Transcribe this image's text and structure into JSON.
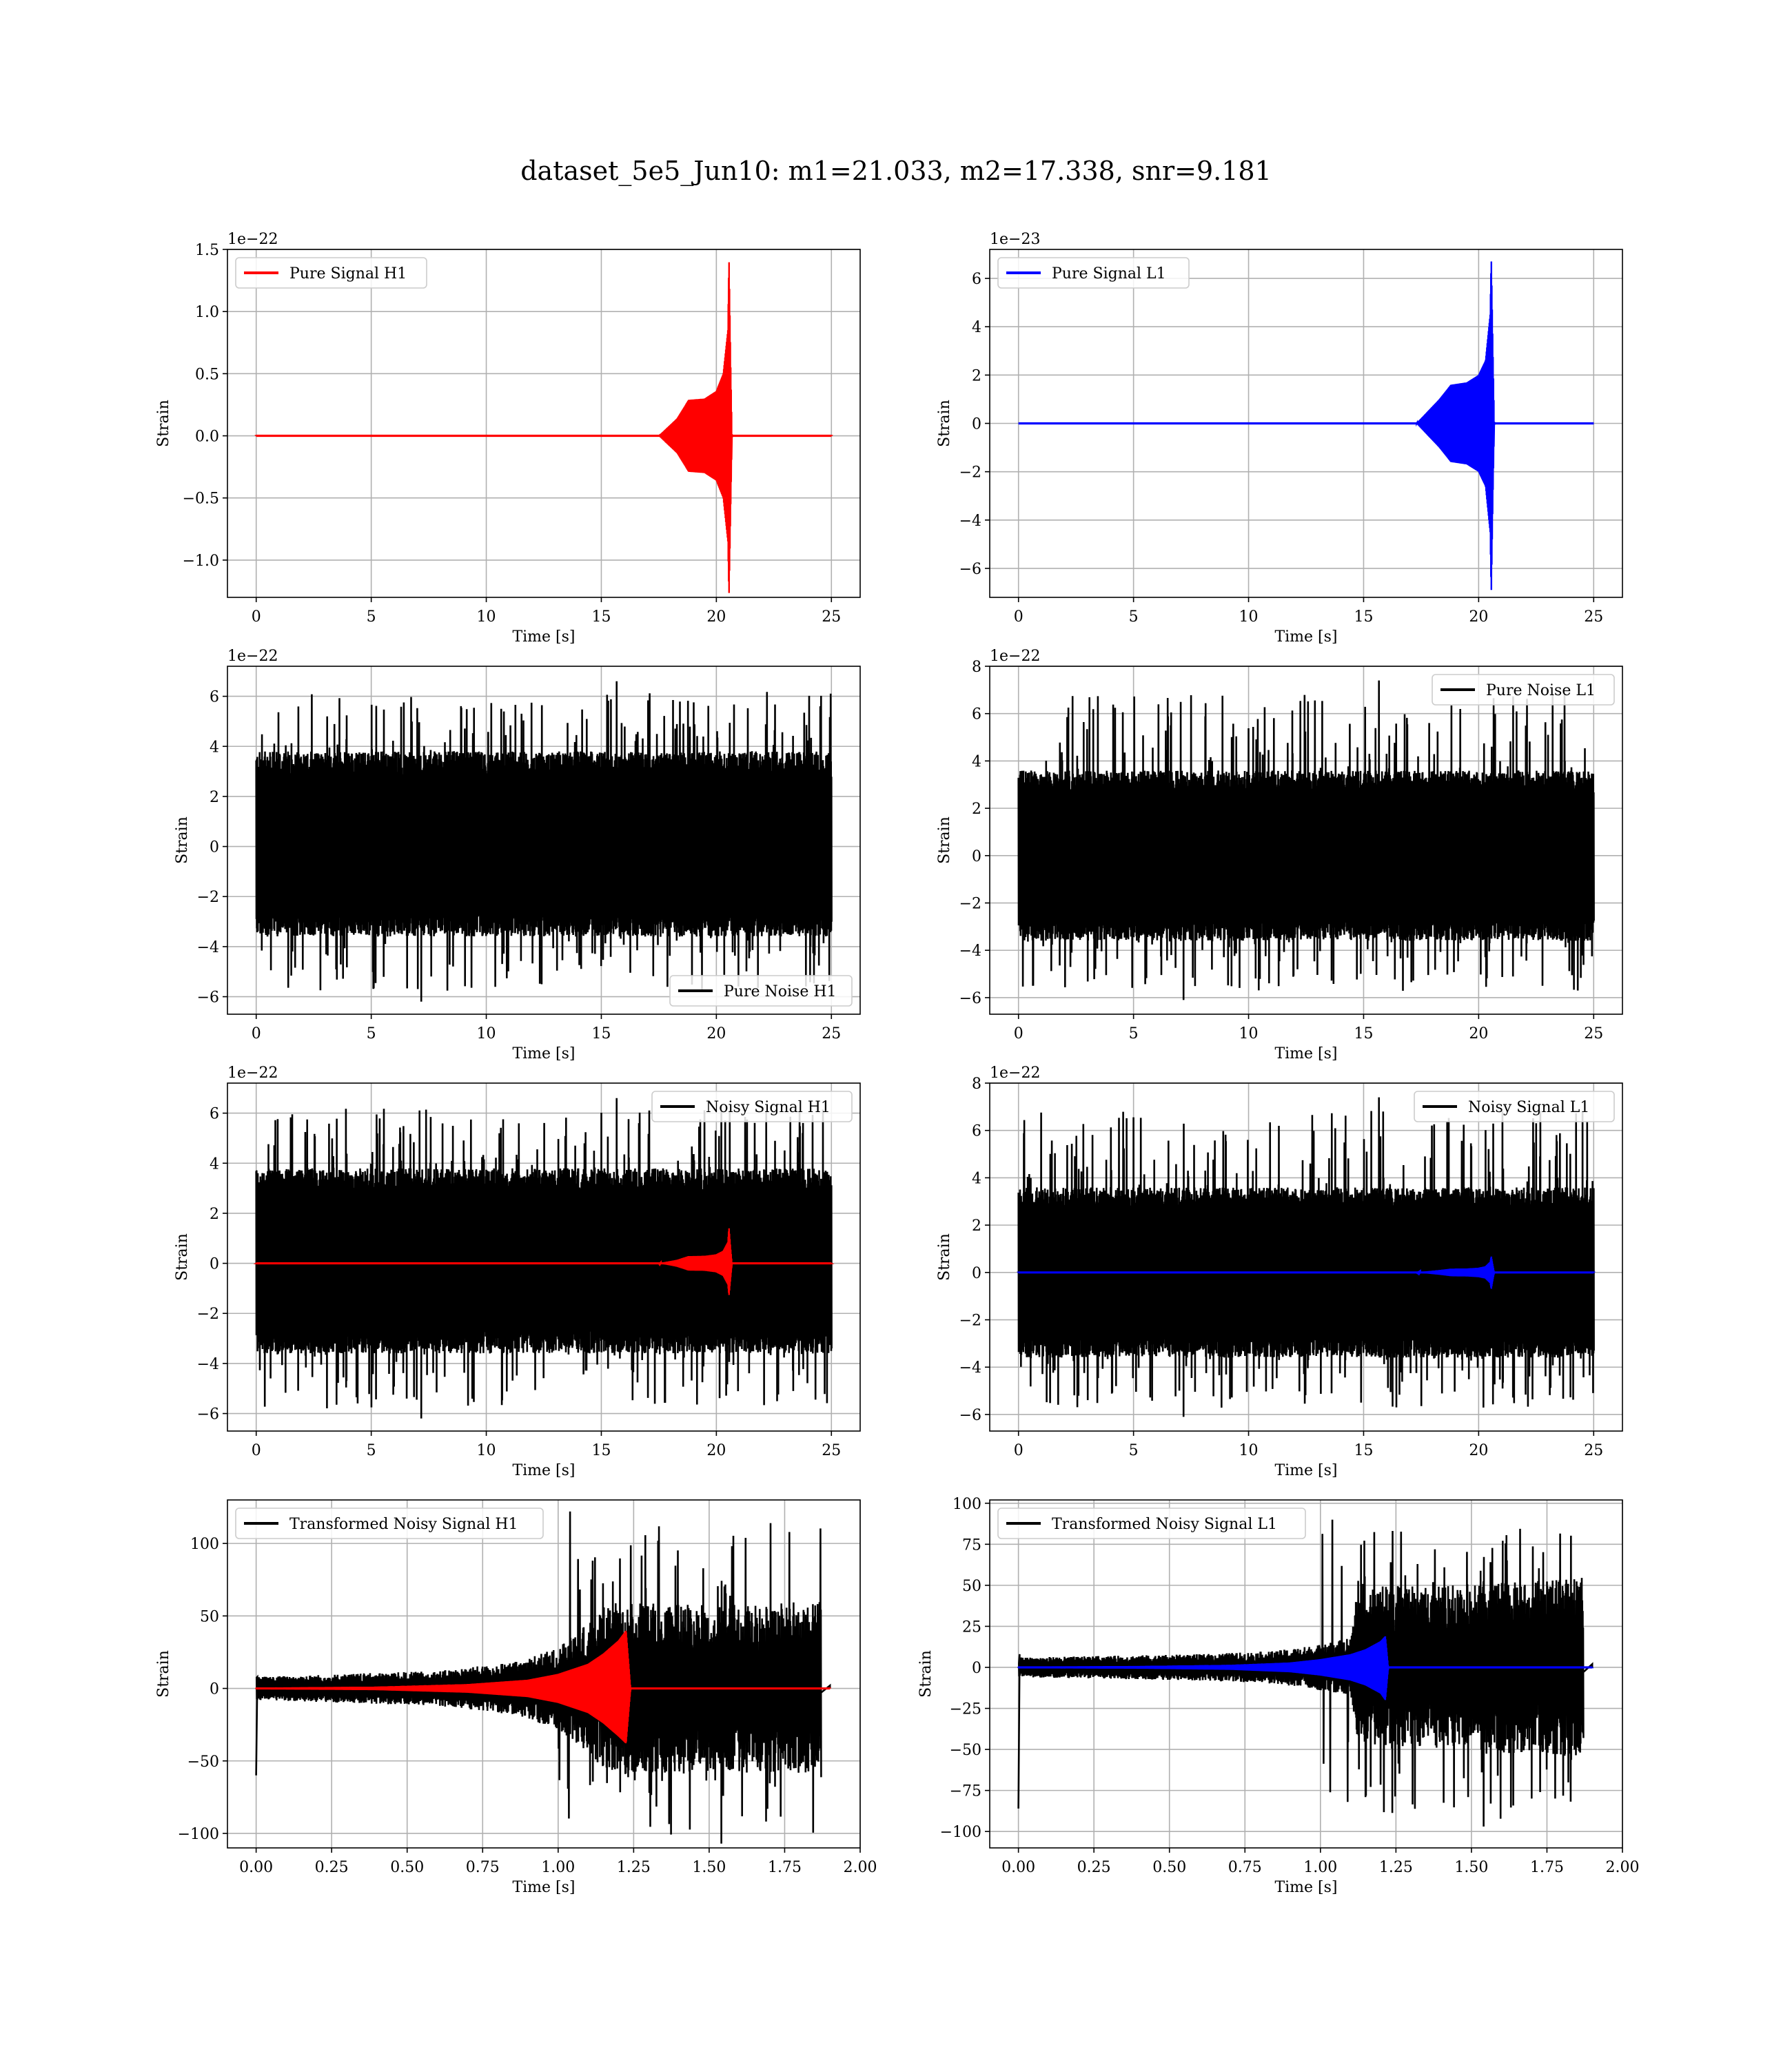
{
  "suptitle": "dataset_5e5_Jun10: m1=21.033, m2=17.338, snr=9.181",
  "colors": {
    "h1_signal": "#ff0000",
    "l1_signal": "#0000ff",
    "noise": "#000000",
    "grid": "#b0b0b0"
  },
  "chart_data": [
    {
      "type": "line",
      "id": "pure-signal-h1",
      "xlabel": "Time [s]",
      "ylabel": "Strain",
      "offset_text": "1e−22",
      "xlim": [
        -1.25,
        26.25
      ],
      "ylim": [
        -1.3,
        1.5
      ],
      "xticks": [
        0,
        5,
        10,
        15,
        20,
        25
      ],
      "xticklabels": [
        "0",
        "5",
        "10",
        "15",
        "20",
        "25"
      ],
      "yticks": [
        -1.0,
        -0.5,
        0.0,
        0.5,
        1.0,
        1.5
      ],
      "yticklabels": [
        "−1.0",
        "−0.5",
        "0.0",
        "0.5",
        "1.0",
        "1.5"
      ],
      "grid": true,
      "legend_loc": "upper left",
      "series": [
        {
          "name": "Pure Signal H1",
          "role": "chirp",
          "color": "#ff0000",
          "x": [
            0,
            17.5,
            18.3,
            18.8,
            19.5,
            20.0,
            20.3,
            20.5,
            20.55,
            20.62,
            20.68,
            25
          ],
          "envelope": [
            0,
            0,
            0.14,
            0.29,
            0.3,
            0.36,
            0.5,
            0.85,
            1.44,
            0.6,
            0,
            0
          ],
          "envelope_min": [
            0,
            0,
            -0.14,
            -0.29,
            -0.3,
            -0.36,
            -0.5,
            -0.85,
            -1.3,
            -0.6,
            0,
            0
          ]
        }
      ]
    },
    {
      "type": "line",
      "id": "pure-signal-l1",
      "xlabel": "Time [s]",
      "ylabel": "Strain",
      "offset_text": "1e−23",
      "xlim": [
        -1.25,
        26.25
      ],
      "ylim": [
        -7.2,
        7.2
      ],
      "xticks": [
        0,
        5,
        10,
        15,
        20,
        25
      ],
      "xticklabels": [
        "0",
        "5",
        "10",
        "15",
        "20",
        "25"
      ],
      "yticks": [
        -6,
        -4,
        -2,
        0,
        2,
        4,
        6
      ],
      "yticklabels": [
        "−6",
        "−4",
        "−2",
        "0",
        "2",
        "4",
        "6"
      ],
      "grid": true,
      "legend_loc": "upper left",
      "series": [
        {
          "name": "Pure Signal L1",
          "role": "chirp",
          "color": "#0000ff",
          "x": [
            0,
            17.3,
            18.3,
            18.8,
            19.5,
            20.0,
            20.3,
            20.5,
            20.55,
            20.62,
            20.68,
            25
          ],
          "envelope": [
            0,
            0,
            1.0,
            1.6,
            1.7,
            2.0,
            2.6,
            4.5,
            6.9,
            3.0,
            0,
            0
          ],
          "envelope_min": [
            0,
            0,
            -1.0,
            -1.6,
            -1.7,
            -2.0,
            -2.6,
            -4.5,
            -7.1,
            -3.0,
            0,
            0
          ]
        }
      ]
    },
    {
      "type": "line",
      "id": "pure-noise-h1",
      "xlabel": "Time [s]",
      "ylabel": "Strain",
      "offset_text": "1e−22",
      "xlim": [
        -1.25,
        26.25
      ],
      "ylim": [
        -6.7,
        7.2
      ],
      "xticks": [
        0,
        5,
        10,
        15,
        20,
        25
      ],
      "xticklabels": [
        "0",
        "5",
        "10",
        "15",
        "20",
        "25"
      ],
      "yticks": [
        -6,
        -4,
        -2,
        0,
        2,
        4,
        6
      ],
      "yticklabels": [
        "−6",
        "−4",
        "−2",
        "0",
        "2",
        "4",
        "6"
      ],
      "grid": true,
      "legend_loc": "lower right",
      "series": [
        {
          "name": "Pure Noise H1",
          "role": "noise",
          "color": "#000000",
          "x_range": [
            0,
            25
          ],
          "band": [
            -3.6,
            3.8
          ],
          "peaks": [
            -6.2,
            6.6
          ]
        }
      ]
    },
    {
      "type": "line",
      "id": "pure-noise-l1",
      "xlabel": "Time [s]",
      "ylabel": "Strain",
      "offset_text": "1e−22",
      "xlim": [
        -1.25,
        26.25
      ],
      "ylim": [
        -6.7,
        8.0
      ],
      "xticks": [
        0,
        5,
        10,
        15,
        20,
        25
      ],
      "xticklabels": [
        "0",
        "5",
        "10",
        "15",
        "20",
        "25"
      ],
      "yticks": [
        -6,
        -4,
        -2,
        0,
        2,
        4,
        6,
        8
      ],
      "yticklabels": [
        "−6",
        "−4",
        "−2",
        "0",
        "2",
        "4",
        "6",
        "8"
      ],
      "grid": true,
      "legend_loc": "upper right",
      "series": [
        {
          "name": "Pure Noise L1",
          "role": "noise",
          "color": "#000000",
          "x_range": [
            0,
            25
          ],
          "band": [
            -3.6,
            3.6
          ],
          "peaks": [
            -6.1,
            7.4
          ]
        }
      ]
    },
    {
      "type": "line",
      "id": "noisy-signal-h1",
      "xlabel": "Time [s]",
      "ylabel": "Strain",
      "offset_text": "1e−22",
      "xlim": [
        -1.25,
        26.25
      ],
      "ylim": [
        -6.7,
        7.2
      ],
      "xticks": [
        0,
        5,
        10,
        15,
        20,
        25
      ],
      "xticklabels": [
        "0",
        "5",
        "10",
        "15",
        "20",
        "25"
      ],
      "yticks": [
        -6,
        -4,
        -2,
        0,
        2,
        4,
        6
      ],
      "yticklabels": [
        "−6",
        "−4",
        "−2",
        "0",
        "2",
        "4",
        "6"
      ],
      "grid": true,
      "legend_loc": "upper right",
      "series": [
        {
          "name": "Noisy Signal H1",
          "role": "noise",
          "color": "#000000",
          "x_range": [
            0,
            25
          ],
          "band": [
            -3.6,
            3.8
          ],
          "peaks": [
            -6.2,
            6.6
          ]
        },
        {
          "name": "",
          "role": "chirp",
          "color": "#ff0000",
          "x": [
            0,
            17.5,
            18.3,
            18.8,
            19.5,
            20.0,
            20.3,
            20.5,
            20.55,
            20.62,
            20.68,
            25
          ],
          "envelope": [
            0,
            0,
            0.14,
            0.29,
            0.3,
            0.36,
            0.5,
            0.85,
            1.44,
            0.6,
            0,
            0
          ],
          "envelope_min": [
            0,
            0,
            -0.14,
            -0.29,
            -0.3,
            -0.36,
            -0.5,
            -0.85,
            -1.3,
            -0.6,
            0,
            0
          ]
        }
      ]
    },
    {
      "type": "line",
      "id": "noisy-signal-l1",
      "xlabel": "Time [s]",
      "ylabel": "Strain",
      "offset_text": "1e−22",
      "xlim": [
        -1.25,
        26.25
      ],
      "ylim": [
        -6.7,
        8.0
      ],
      "xticks": [
        0,
        5,
        10,
        15,
        20,
        25
      ],
      "xticklabels": [
        "0",
        "5",
        "10",
        "15",
        "20",
        "25"
      ],
      "yticks": [
        -6,
        -4,
        -2,
        0,
        2,
        4,
        6,
        8
      ],
      "yticklabels": [
        "−6",
        "−4",
        "−2",
        "0",
        "2",
        "4",
        "6",
        "8"
      ],
      "grid": true,
      "legend_loc": "upper right",
      "series": [
        {
          "name": "Noisy Signal L1",
          "role": "noise",
          "color": "#000000",
          "x_range": [
            0,
            25
          ],
          "band": [
            -3.6,
            3.6
          ],
          "peaks": [
            -6.1,
            7.4
          ]
        },
        {
          "name": "",
          "role": "chirp",
          "color": "#0000ff",
          "x": [
            0,
            17.3,
            18.3,
            18.8,
            19.5,
            20.0,
            20.3,
            20.5,
            20.55,
            20.62,
            20.68,
            25
          ],
          "envelope": [
            0,
            0,
            0.1,
            0.16,
            0.17,
            0.2,
            0.26,
            0.45,
            0.69,
            0.3,
            0,
            0
          ],
          "envelope_min": [
            0,
            0,
            -0.1,
            -0.16,
            -0.17,
            -0.2,
            -0.26,
            -0.45,
            -0.71,
            -0.3,
            0,
            0
          ]
        }
      ]
    },
    {
      "type": "line",
      "id": "transformed-noisy-signal-h1",
      "xlabel": "Time [s]",
      "ylabel": "Strain",
      "offset_text": "",
      "xlim": [
        -0.095,
        2.0
      ],
      "ylim": [
        -110,
        130
      ],
      "xticks": [
        0,
        0.25,
        0.5,
        0.75,
        1.0,
        1.25,
        1.5,
        1.75,
        2.0
      ],
      "xticklabels": [
        "0.00",
        "0.25",
        "0.50",
        "0.75",
        "1.00",
        "1.25",
        "1.50",
        "1.75",
        "2.00"
      ],
      "yticks": [
        -100,
        -50,
        0,
        50,
        100
      ],
      "yticklabels": [
        "−100",
        "−50",
        "0",
        "50",
        "100"
      ],
      "grid": true,
      "legend_loc": "upper left",
      "series": [
        {
          "name": "Transformed Noisy Signal H1",
          "role": "whitened",
          "color": "#000000",
          "x": [
            0,
            0.3,
            0.6,
            0.85,
            1.0,
            1.1,
            1.15,
            1.2,
            1.4,
            1.6,
            1.87
          ],
          "envelope": [
            8,
            10,
            12,
            18,
            28,
            45,
            55,
            60,
            58,
            58,
            60
          ],
          "peaks": [
            -107,
            122
          ],
          "edge_spike": -60,
          "x_end": 1.9
        },
        {
          "name": "",
          "role": "chirp",
          "color": "#ff0000",
          "x": [
            0,
            0.4,
            0.7,
            0.9,
            1.0,
            1.1,
            1.15,
            1.2,
            1.225,
            1.24,
            1.9
          ],
          "envelope": [
            0.5,
            1.2,
            3,
            6,
            10,
            17,
            24,
            33,
            40,
            0,
            0
          ],
          "envelope_min": [
            -0.5,
            -1.2,
            -3,
            -6,
            -10,
            -17,
            -24,
            -33,
            -38,
            0,
            0
          ]
        }
      ]
    },
    {
      "type": "line",
      "id": "transformed-noisy-signal-l1",
      "xlabel": "Time [s]",
      "ylabel": "Strain",
      "offset_text": "",
      "xlim": [
        -0.095,
        2.0
      ],
      "ylim": [
        -110,
        102
      ],
      "xticks": [
        0,
        0.25,
        0.5,
        0.75,
        1.0,
        1.25,
        1.5,
        1.75,
        2.0
      ],
      "xticklabels": [
        "0.00",
        "0.25",
        "0.50",
        "0.75",
        "1.00",
        "1.25",
        "1.50",
        "1.75",
        "2.00"
      ],
      "yticks": [
        -100,
        -75,
        -50,
        -25,
        0,
        25,
        50,
        75,
        100
      ],
      "yticklabels": [
        "−100",
        "−75",
        "−50",
        "−25",
        "0",
        "25",
        "50",
        "75",
        "100"
      ],
      "grid": true,
      "legend_loc": "upper left",
      "series": [
        {
          "name": "Transformed Noisy Signal L1",
          "role": "whitened",
          "color": "#000000",
          "x": [
            0,
            0.3,
            0.6,
            0.85,
            1.0,
            1.1,
            1.12,
            1.2,
            1.4,
            1.6,
            1.87
          ],
          "envelope": [
            6,
            7,
            8,
            10,
            14,
            18,
            45,
            50,
            50,
            52,
            55
          ],
          "peaks": [
            -97,
            90
          ],
          "edge_spike": -86,
          "x_end": 1.9
        },
        {
          "name": "",
          "role": "chirp",
          "color": "#0000ff",
          "x": [
            0,
            0.4,
            0.7,
            0.9,
            1.0,
            1.1,
            1.15,
            1.2,
            1.215,
            1.225,
            1.9
          ],
          "envelope": [
            0.4,
            0.8,
            1.5,
            3,
            5,
            8,
            11,
            16,
            19,
            0,
            0
          ],
          "envelope_min": [
            -0.4,
            -0.8,
            -1.5,
            -3,
            -5,
            -8,
            -11,
            -16,
            -20,
            0,
            0
          ]
        }
      ]
    }
  ]
}
